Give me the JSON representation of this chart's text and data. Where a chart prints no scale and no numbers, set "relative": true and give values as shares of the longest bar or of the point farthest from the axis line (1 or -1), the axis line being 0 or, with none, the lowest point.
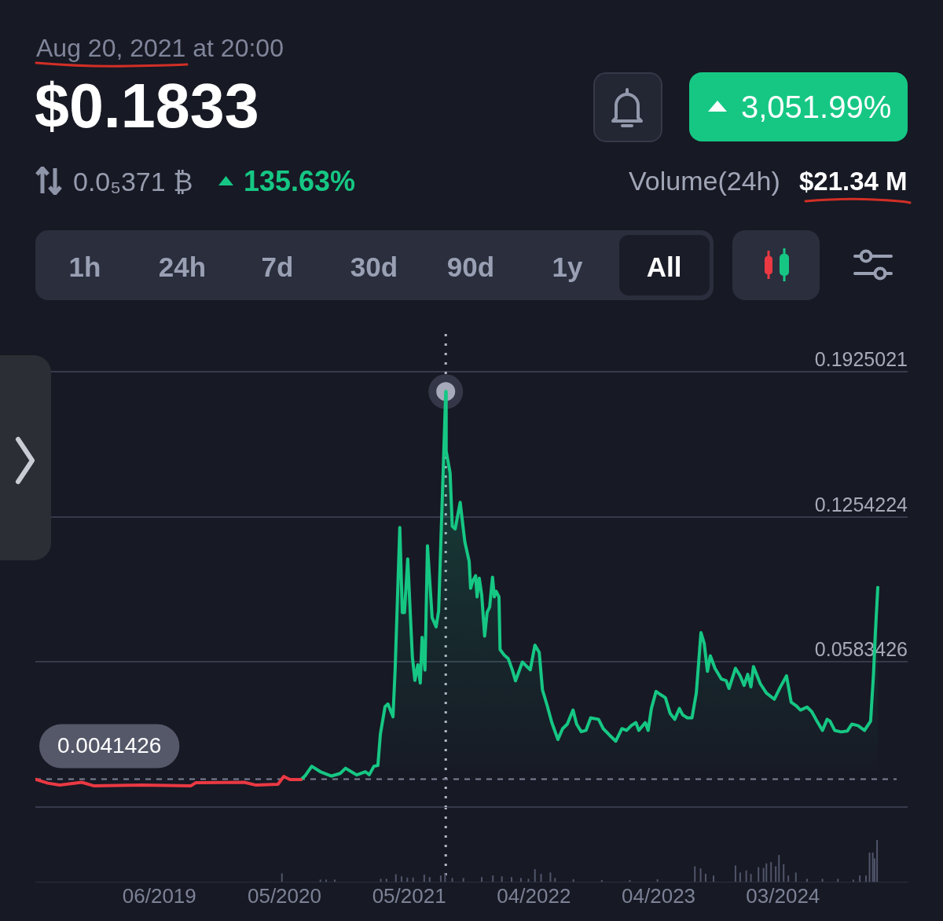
{
  "chart_data": [
    {
      "type": "line",
      "title": "$0.1833",
      "subtitle": "Aug 20, 2021 at 20:00",
      "annotations": [
        "0.0₅371 ₿",
        "135.63%",
        "3,051.99%",
        "Volume(24h)",
        "$21.34 M",
        "1h",
        "24h",
        "7d",
        "30d",
        "90d",
        "1y",
        "All"
      ],
      "xlim": [
        "2018-07-06",
        "2025-02-26"
      ],
      "ylim": [
        -0.0087372,
        0.1925021
      ],
      "yticks": [
        {
          "value": -0.0087372,
          "label": null
        },
        0.0583426,
        0.1254224,
        0.1925021
      ],
      "grid": "y",
      "tick_labels": "y",
      "ref_lines": [
        {
          "axis": "x",
          "value": "2021-08-20T20:00",
          "line_style": "dotted",
          "color": "#b4b8c6"
        },
        {
          "axis": "y",
          "value": 0.0041426,
          "label": "0.0041426",
          "line_style": "dashed",
          "color": "#7d8295"
        }
      ],
      "series": [
        {
          "color": "#ea3943",
          "x": [
            "2018-07-06",
            "2018-08-10",
            "2018-09-12",
            "2018-11-12",
            "2018-12-15",
            "2019-04-27",
            "2019-09-12",
            "2019-09-25",
            "2020-02-07",
            "2020-03-11",
            "2020-05-11",
            "2020-05-27",
            "2020-06-13",
            "2020-07-14"
          ],
          "values": [
            0.0041,
            0.0023,
            0.0014,
            0.0027,
            0.0011,
            0.0014,
            0.0011,
            0.0025,
            0.0027,
            0.0014,
            0.0018,
            0.0054,
            0.004,
            0.004
          ]
        },
        {
          "type": "area",
          "color": "#16c784",
          "x": [
            "2020-07-14",
            "2020-07-25",
            "2020-08-13",
            "2020-09-06",
            "2020-10-07",
            "2020-10-31",
            "2020-11-15",
            "2020-12-01",
            "2020-12-16",
            "2021-01-09",
            "2021-01-20",
            "2021-02-02",
            "2021-02-13",
            "2021-02-20",
            "2021-03-05",
            "2021-03-13",
            "2021-03-27",
            "2021-04-02",
            "2021-04-15",
            "2021-04-22",
            "2021-04-28",
            "2021-05-07",
            "2021-05-20",
            "2021-05-27",
            "2021-06-04",
            "2021-06-11",
            "2021-06-16",
            "2021-06-24",
            "2021-07-01",
            "2021-07-14",
            "2021-07-25",
            "2021-08-01",
            "2021-08-20T20:00",
            "2021-08-22",
            "2021-09-02",
            "2021-09-08",
            "2021-09-16",
            "2021-09-30",
            "2021-10-13",
            "2021-10-25",
            "2021-10-29",
            "2021-11-04",
            "2021-11-12",
            "2021-11-16",
            "2021-11-22",
            "2021-11-29",
            "2021-12-07",
            "2021-12-14",
            "2021-12-21",
            "2021-12-29",
            "2022-01-03",
            "2022-01-08",
            "2022-01-16",
            "2022-01-19",
            "2022-01-30",
            "2022-02-11",
            "2022-02-22",
            "2022-03-03",
            "2022-03-22",
            "2022-04-13",
            "2022-04-26",
            "2022-05-08",
            "2022-05-17",
            "2022-05-30",
            "2022-06-12",
            "2022-06-29",
            "2022-07-12",
            "2022-07-25",
            "2022-08-10",
            "2022-08-20",
            "2022-09-02",
            "2022-09-15",
            "2022-09-28",
            "2022-10-20",
            "2022-11-02",
            "2022-11-19",
            "2022-12-07",
            "2022-12-24",
            "2023-01-06",
            "2023-01-19",
            "2023-02-01",
            "2023-02-09",
            "2023-02-27",
            "2023-03-07",
            "2023-03-16",
            "2023-03-29",
            "2023-04-11",
            "2023-04-24",
            "2023-05-07",
            "2023-05-20",
            "2023-06-02",
            "2023-06-11",
            "2023-06-24",
            "2023-07-07",
            "2023-07-19",
            "2023-08-01",
            "2023-08-10",
            "2023-08-19",
            "2023-08-27",
            "2023-09-09",
            "2023-09-27",
            "2023-10-10",
            "2023-10-18",
            "2023-11-05",
            "2023-11-18",
            "2023-11-29",
            "2023-12-09",
            "2023-12-18",
            "2023-12-25",
            "2024-01-13",
            "2024-01-30",
            "2024-02-21",
            "2024-03-09",
            "2024-03-26",
            "2024-04-08",
            "2024-04-21",
            "2024-05-04",
            "2024-05-22",
            "2024-06-04",
            "2024-06-16",
            "2024-07-04",
            "2024-07-17",
            "2024-07-25",
            "2024-08-07",
            "2024-08-25",
            "2024-09-11",
            "2024-09-24",
            "2024-10-11",
            "2024-10-29",
            "2024-11-15",
            "2024-11-23",
            "2024-11-28",
            "2024-12-05"
          ],
          "values": [
            0.004,
            0.0056,
            0.0101,
            0.0076,
            0.0056,
            0.0068,
            0.0092,
            0.0076,
            0.0061,
            0.0076,
            0.0062,
            0.0101,
            0.0105,
            0.025,
            0.0377,
            0.0389,
            0.033,
            0.0547,
            0.1205,
            0.0812,
            0.0812,
            0.106,
            0.0606,
            0.0498,
            0.057,
            0.0486,
            0.0697,
            0.0546,
            0.112,
            0.0788,
            0.0746,
            0.0818,
            0.1833,
            0.1559,
            0.1457,
            0.1211,
            0.1198,
            0.1321,
            0.1138,
            0.1048,
            0.0924,
            0.0957,
            0.0982,
            0.0884,
            0.0971,
            0.0892,
            0.0703,
            0.0812,
            0.0837,
            0.0975,
            0.0884,
            0.091,
            0.0884,
            0.0641,
            0.0616,
            0.0598,
            0.0547,
            0.0496,
            0.0583,
            0.0547,
            0.0661,
            0.0627,
            0.0454,
            0.0382,
            0.0303,
            0.0225,
            0.0275,
            0.0296,
            0.0361,
            0.0296,
            0.0261,
            0.0267,
            0.0325,
            0.0318,
            0.0275,
            0.0246,
            0.0217,
            0.0275,
            0.0267,
            0.0289,
            0.0303,
            0.0267,
            0.0303,
            0.0267,
            0.0368,
            0.0447,
            0.0432,
            0.0418,
            0.0346,
            0.0318,
            0.0368,
            0.0339,
            0.0325,
            0.0325,
            0.044,
            0.0719,
            0.0669,
            0.054,
            0.0612,
            0.0554,
            0.0504,
            0.0497,
            0.0461,
            0.0554,
            0.0519,
            0.0475,
            0.0526,
            0.0468,
            0.0562,
            0.0483,
            0.044,
            0.0411,
            0.0468,
            0.0519,
            0.0397,
            0.0382,
            0.0361,
            0.0375,
            0.0354,
            0.0318,
            0.0267,
            0.0318,
            0.031,
            0.0267,
            0.026,
            0.0264,
            0.0296,
            0.0289,
            0.0267,
            0.031,
            0.0526,
            0.0712,
            0.0928
          ]
        },
        {
          "type": "scatter",
          "color": "#a6aabb",
          "marker": "circle",
          "x": [
            "2021-08-20T20:00"
          ],
          "values": [
            0.1833
          ]
        }
      ]
    },
    {
      "type": "bar",
      "relative": true,
      "color": "#50556a",
      "x": [
        "2020-05-22",
        "2020-09-06",
        "2020-09-22",
        "2020-10-16",
        "2021-02-21",
        "2021-03-09",
        "2021-04-04",
        "2021-04-20",
        "2021-05-06",
        "2021-05-22",
        "2021-06-22",
        "2021-07-07",
        "2021-08-07",
        "2021-08-19",
        "2021-09-08",
        "2021-10-09",
        "2021-11-29",
        "2021-12-30",
        "2022-01-24",
        "2022-02-20",
        "2022-03-18",
        "2022-04-08",
        "2022-04-26",
        "2022-05-13",
        "2022-06-08",
        "2022-06-21",
        "2022-08-11",
        "2022-10-29",
        "2023-01-15",
        "2023-04-02",
        "2023-07-15",
        "2023-07-31",
        "2023-08-14",
        "2023-09-05",
        "2023-11-05",
        "2023-11-18",
        "2023-12-05",
        "2023-12-18",
        "2024-01-08",
        "2024-01-22",
        "2024-01-30",
        "2024-02-12",
        "2024-02-25",
        "2024-03-05",
        "2024-03-18",
        "2024-03-31",
        "2024-04-21",
        "2024-05-22",
        "2024-07-04",
        "2024-08-16",
        "2024-09-28",
        "2024-10-16",
        "2024-11-02",
        "2024-11-12",
        "2024-11-21",
        "2024-11-26",
        "2024-12-03"
      ],
      "values": [
        0.2,
        0.05,
        0.05,
        0.05,
        0.07,
        0.07,
        0.18,
        0.13,
        0.1,
        0.1,
        0.17,
        0.11,
        0.15,
        0.2,
        0.09,
        0.09,
        0.11,
        0.15,
        0.13,
        0.11,
        0.09,
        0.07,
        0.3,
        0.19,
        0.22,
        0.09,
        0.06,
        0.04,
        0.04,
        0.06,
        0.37,
        0.32,
        0.19,
        0.15,
        0.39,
        0.22,
        0.27,
        0.19,
        0.35,
        0.33,
        0.44,
        0.47,
        0.37,
        0.64,
        0.42,
        0.15,
        0.22,
        0.07,
        0.07,
        0.07,
        0.05,
        0.15,
        0.15,
        0.7,
        0.7,
        0.56,
        1
      ],
      "xlim": [
        "2018-07-06",
        "2025-02-26"
      ],
      "xticks": [
        {
          "value": "2019-06-16",
          "label": "06/2019"
        },
        {
          "value": "2020-05-29",
          "label": "05/2020"
        },
        {
          "value": "2021-05-11",
          "label": "05/2021"
        },
        {
          "value": "2022-04-23",
          "label": "04/2022"
        },
        {
          "value": "2023-04-05",
          "label": "04/2023"
        },
        {
          "value": "2024-03-16",
          "label": "03/2024"
        }
      ],
      "ref_lines": [
        {
          "axis": "x",
          "value": "2021-08-20T20:00",
          "line_style": "dotted",
          "color": "#b4b8c6"
        }
      ]
    }
  ]
}
